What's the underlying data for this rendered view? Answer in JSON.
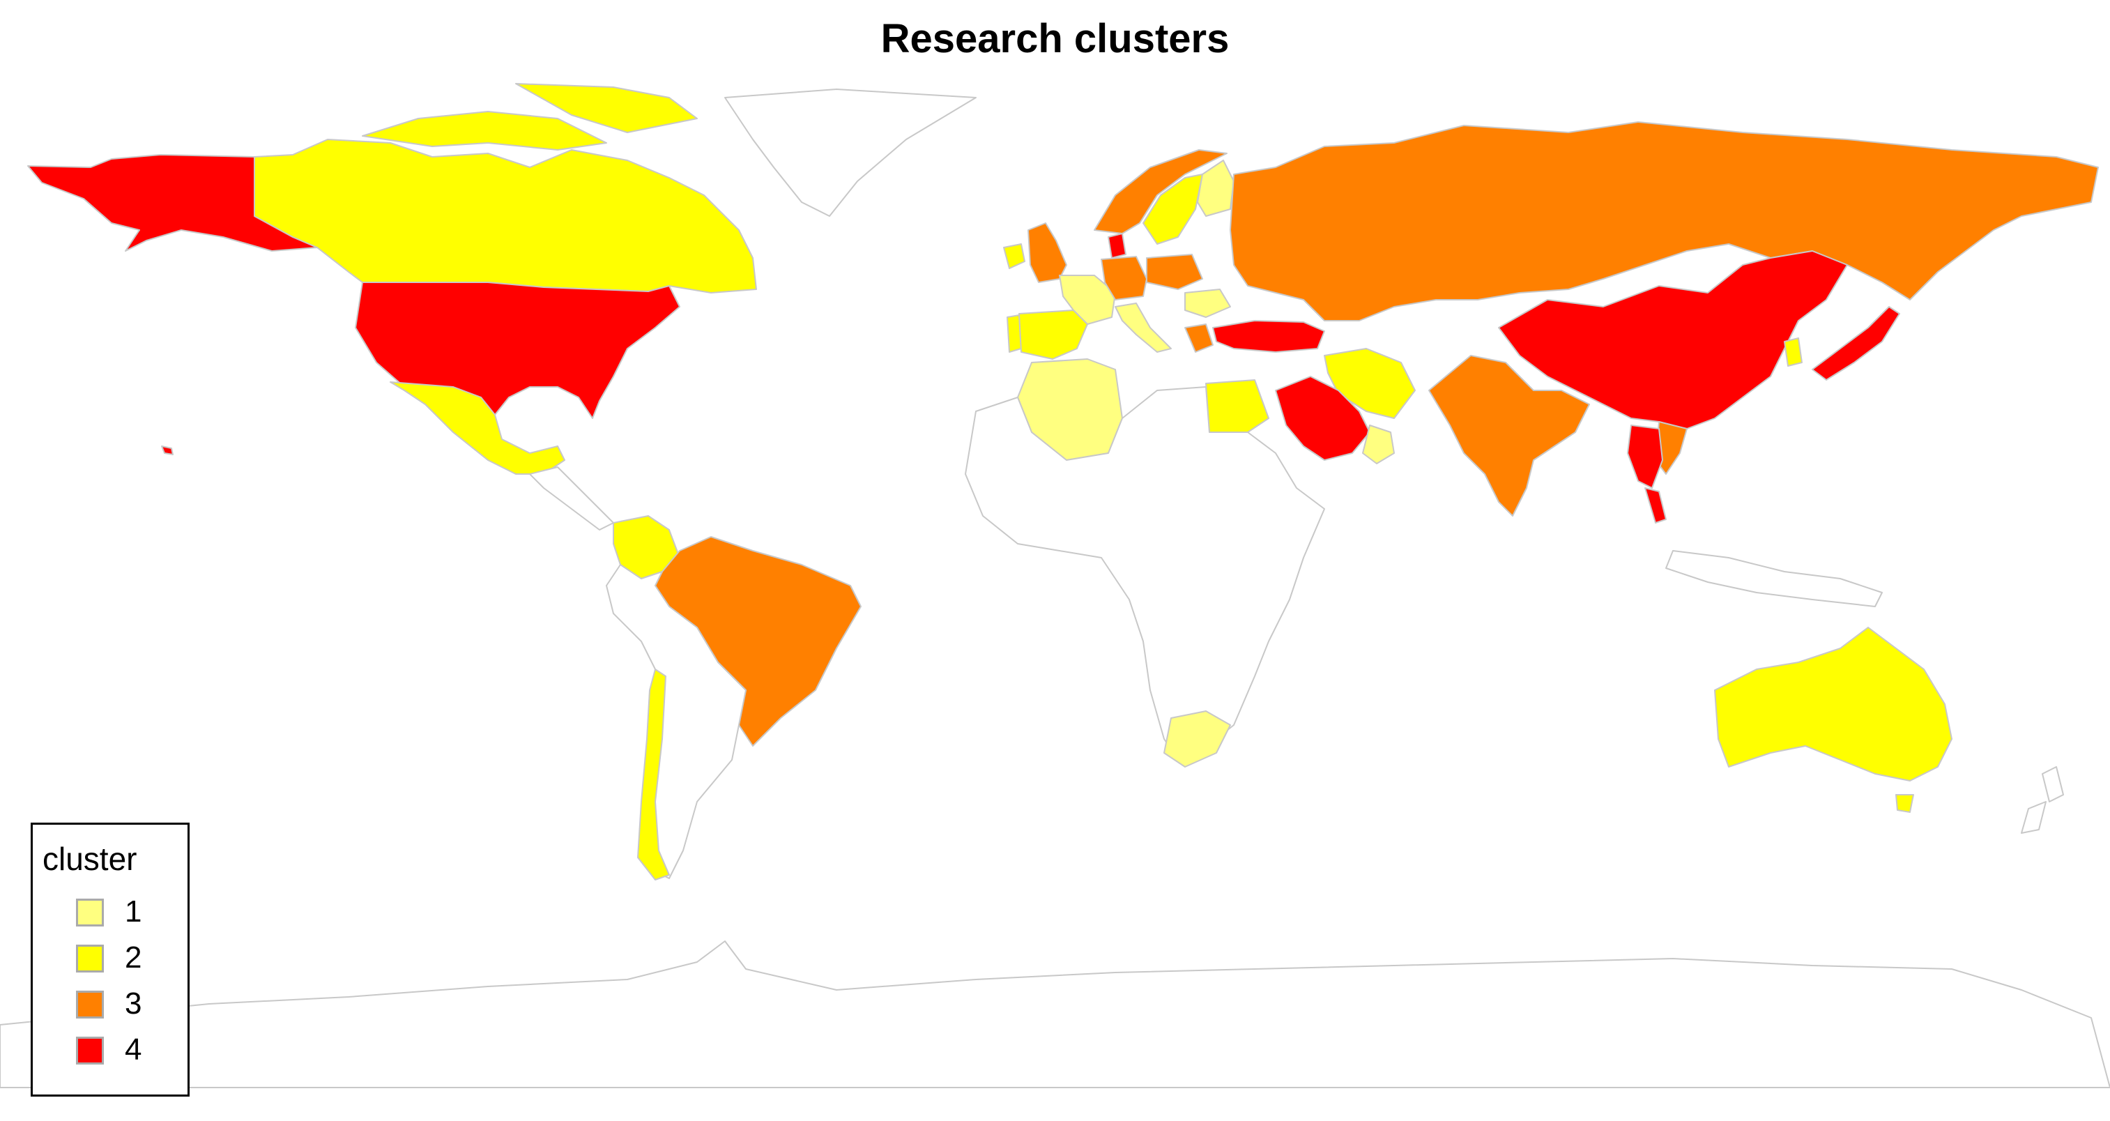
{
  "title": "Research clusters",
  "legend": {
    "title": "cluster",
    "items": [
      {
        "label": "1",
        "color": "#ffff80"
      },
      {
        "label": "2",
        "color": "#ffff00"
      },
      {
        "label": "3",
        "color": "#ff8000"
      },
      {
        "label": "4",
        "color": "#ff0000"
      }
    ]
  },
  "colors": {
    "none": "#ffffff",
    "border": "#c8c8c8"
  },
  "regions": [
    {
      "name": "alaska",
      "cluster": 4
    },
    {
      "name": "canada",
      "cluster": 2
    },
    {
      "name": "greenland",
      "cluster": 0
    },
    {
      "name": "united-states",
      "cluster": 4
    },
    {
      "name": "hawaii",
      "cluster": 4
    },
    {
      "name": "mexico",
      "cluster": 2
    },
    {
      "name": "colombia",
      "cluster": 2
    },
    {
      "name": "brazil",
      "cluster": 3
    },
    {
      "name": "chile",
      "cluster": 2
    },
    {
      "name": "south-america-other",
      "cluster": 0
    },
    {
      "name": "central-america",
      "cluster": 0
    },
    {
      "name": "ireland",
      "cluster": 2
    },
    {
      "name": "united-kingdom",
      "cluster": 3
    },
    {
      "name": "spain",
      "cluster": 2
    },
    {
      "name": "portugal",
      "cluster": 2
    },
    {
      "name": "france",
      "cluster": 1
    },
    {
      "name": "italy",
      "cluster": 1
    },
    {
      "name": "denmark",
      "cluster": 4
    },
    {
      "name": "germany",
      "cluster": 3
    },
    {
      "name": "poland",
      "cluster": 3
    },
    {
      "name": "norway",
      "cluster": 3
    },
    {
      "name": "sweden",
      "cluster": 2
    },
    {
      "name": "finland",
      "cluster": 1
    },
    {
      "name": "romania",
      "cluster": 1
    },
    {
      "name": "greece",
      "cluster": 3
    },
    {
      "name": "russia",
      "cluster": 3
    },
    {
      "name": "turkey",
      "cluster": 4
    },
    {
      "name": "iran",
      "cluster": 2
    },
    {
      "name": "saudi-arabia",
      "cluster": 4
    },
    {
      "name": "oman",
      "cluster": 1
    },
    {
      "name": "egypt",
      "cluster": 2
    },
    {
      "name": "algeria",
      "cluster": 1
    },
    {
      "name": "africa-other",
      "cluster": 0
    },
    {
      "name": "south-africa",
      "cluster": 1
    },
    {
      "name": "india",
      "cluster": 3
    },
    {
      "name": "china",
      "cluster": 4
    },
    {
      "name": "thailand",
      "cluster": 4
    },
    {
      "name": "malaysia",
      "cluster": 4
    },
    {
      "name": "vietnam",
      "cluster": 3
    },
    {
      "name": "japan",
      "cluster": 4
    },
    {
      "name": "korea",
      "cluster": 2
    },
    {
      "name": "australia",
      "cluster": 2
    },
    {
      "name": "tasmania",
      "cluster": 2
    },
    {
      "name": "new-zealand",
      "cluster": 0
    },
    {
      "name": "indonesia",
      "cluster": 0
    },
    {
      "name": "antarctica",
      "cluster": 0
    }
  ]
}
